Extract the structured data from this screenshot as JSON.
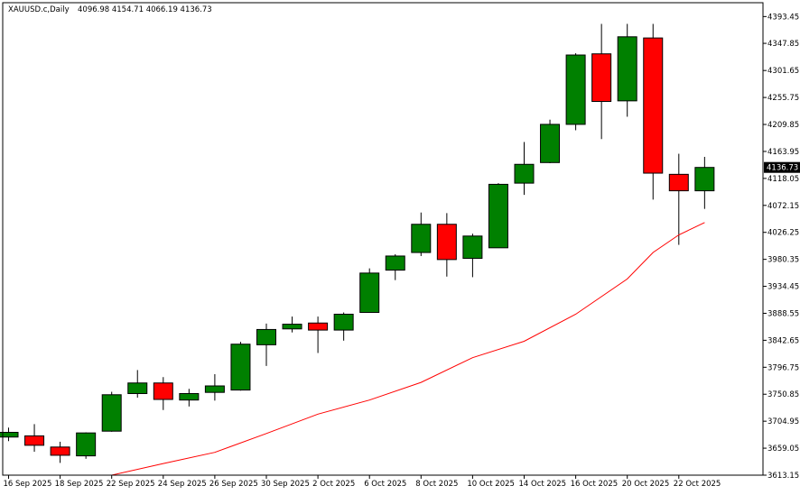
{
  "header": {
    "symbol": "XAUUSD.c,Daily",
    "ohlc": "4096.98 4154.71 4066.19 4136.73"
  },
  "colors": {
    "bull": "#008000",
    "bear": "#ff0000",
    "ma": "#ff0000",
    "price_tag_bg": "#000000",
    "price_tag_fg": "#ffffff",
    "border": "#000000",
    "background": "#ffffff"
  },
  "chart_data": {
    "type": "candlestick",
    "title": "XAUUSD.c,Daily",
    "ylim": [
      3613.15,
      4417.0
    ],
    "y_ticks": [
      "4393.45",
      "4347.85",
      "4301.65",
      "4255.75",
      "4209.85",
      "4163.95",
      "4118.05",
      "4072.15",
      "4026.25",
      "3980.35",
      "3934.45",
      "3888.55",
      "3842.65",
      "3796.75",
      "3750.85",
      "3704.95",
      "3659.05",
      "3613.15"
    ],
    "current_price": "4136.73",
    "x_ticks": [
      {
        "label": "16 Sep 2025",
        "index": 0
      },
      {
        "label": "18 Sep 2025",
        "index": 2
      },
      {
        "label": "22 Sep 2025",
        "index": 4
      },
      {
        "label": "24 Sep 2025",
        "index": 6
      },
      {
        "label": "26 Sep 2025",
        "index": 8
      },
      {
        "label": "30 Sep 2025",
        "index": 10
      },
      {
        "label": "2 Oct 2025",
        "index": 12
      },
      {
        "label": "6 Oct 2025",
        "index": 14
      },
      {
        "label": "8 Oct 2025",
        "index": 16
      },
      {
        "label": "10 Oct 2025",
        "index": 18
      },
      {
        "label": "14 Oct 2025",
        "index": 20
      },
      {
        "label": "16 Oct 2025",
        "index": 22
      },
      {
        "label": "20 Oct 2025",
        "index": 24
      },
      {
        "label": "22 Oct 2025",
        "index": 26
      }
    ],
    "candles": [
      {
        "o": 3678,
        "h": 3694,
        "l": 3671,
        "c": 3686
      },
      {
        "o": 3680,
        "h": 3700,
        "l": 3653,
        "c": 3664
      },
      {
        "o": 3661,
        "h": 3670,
        "l": 3634,
        "c": 3647
      },
      {
        "o": 3646,
        "h": 3686,
        "l": 3641,
        "c": 3685
      },
      {
        "o": 3688,
        "h": 3755,
        "l": 3687,
        "c": 3750
      },
      {
        "o": 3752,
        "h": 3792,
        "l": 3745,
        "c": 3770
      },
      {
        "o": 3770,
        "h": 3780,
        "l": 3724,
        "c": 3742
      },
      {
        "o": 3741,
        "h": 3760,
        "l": 3730,
        "c": 3752
      },
      {
        "o": 3754,
        "h": 3785,
        "l": 3740,
        "c": 3765
      },
      {
        "o": 3758,
        "h": 3840,
        "l": 3757,
        "c": 3836
      },
      {
        "o": 3835,
        "h": 3871,
        "l": 3799,
        "c": 3861
      },
      {
        "o": 3862,
        "h": 3883,
        "l": 3856,
        "c": 3870
      },
      {
        "o": 3872,
        "h": 3883,
        "l": 3821,
        "c": 3860
      },
      {
        "o": 3860,
        "h": 3890,
        "l": 3842,
        "c": 3887
      },
      {
        "o": 3890,
        "h": 3965,
        "l": 3890,
        "c": 3957
      },
      {
        "o": 3962,
        "h": 3989,
        "l": 3945,
        "c": 3986
      },
      {
        "o": 3992,
        "h": 4060,
        "l": 3986,
        "c": 4040
      },
      {
        "o": 4040,
        "h": 4059,
        "l": 3951,
        "c": 3980
      },
      {
        "o": 3982,
        "h": 4024,
        "l": 3950,
        "c": 4020
      },
      {
        "o": 4000,
        "h": 4110,
        "l": 4000,
        "c": 4108
      },
      {
        "o": 4110,
        "h": 4180,
        "l": 4090,
        "c": 4142
      },
      {
        "o": 4145,
        "h": 4218,
        "l": 4144,
        "c": 4210
      },
      {
        "o": 4210,
        "h": 4331,
        "l": 4200,
        "c": 4328
      },
      {
        "o": 4330,
        "h": 4381,
        "l": 4185,
        "c": 4249
      },
      {
        "o": 4250,
        "h": 4381,
        "l": 4223,
        "c": 4359
      },
      {
        "o": 4357,
        "h": 4381,
        "l": 4082,
        "c": 4127
      },
      {
        "o": 4125,
        "h": 4160,
        "l": 4005,
        "c": 4097
      },
      {
        "o": 4096.98,
        "h": 4154.71,
        "l": 4066.19,
        "c": 4136.73
      }
    ],
    "ma": [
      {
        "i": 4,
        "v": 3613.2
      },
      {
        "i": 6,
        "v": 3633
      },
      {
        "i": 8,
        "v": 3652
      },
      {
        "i": 10,
        "v": 3684
      },
      {
        "i": 12,
        "v": 3717
      },
      {
        "i": 14,
        "v": 3741
      },
      {
        "i": 16,
        "v": 3771
      },
      {
        "i": 18,
        "v": 3813
      },
      {
        "i": 20,
        "v": 3841
      },
      {
        "i": 22,
        "v": 3887
      },
      {
        "i": 24,
        "v": 3947
      },
      {
        "i": 25,
        "v": 3992
      },
      {
        "i": 26,
        "v": 4022
      },
      {
        "i": 27,
        "v": 4043
      }
    ]
  }
}
